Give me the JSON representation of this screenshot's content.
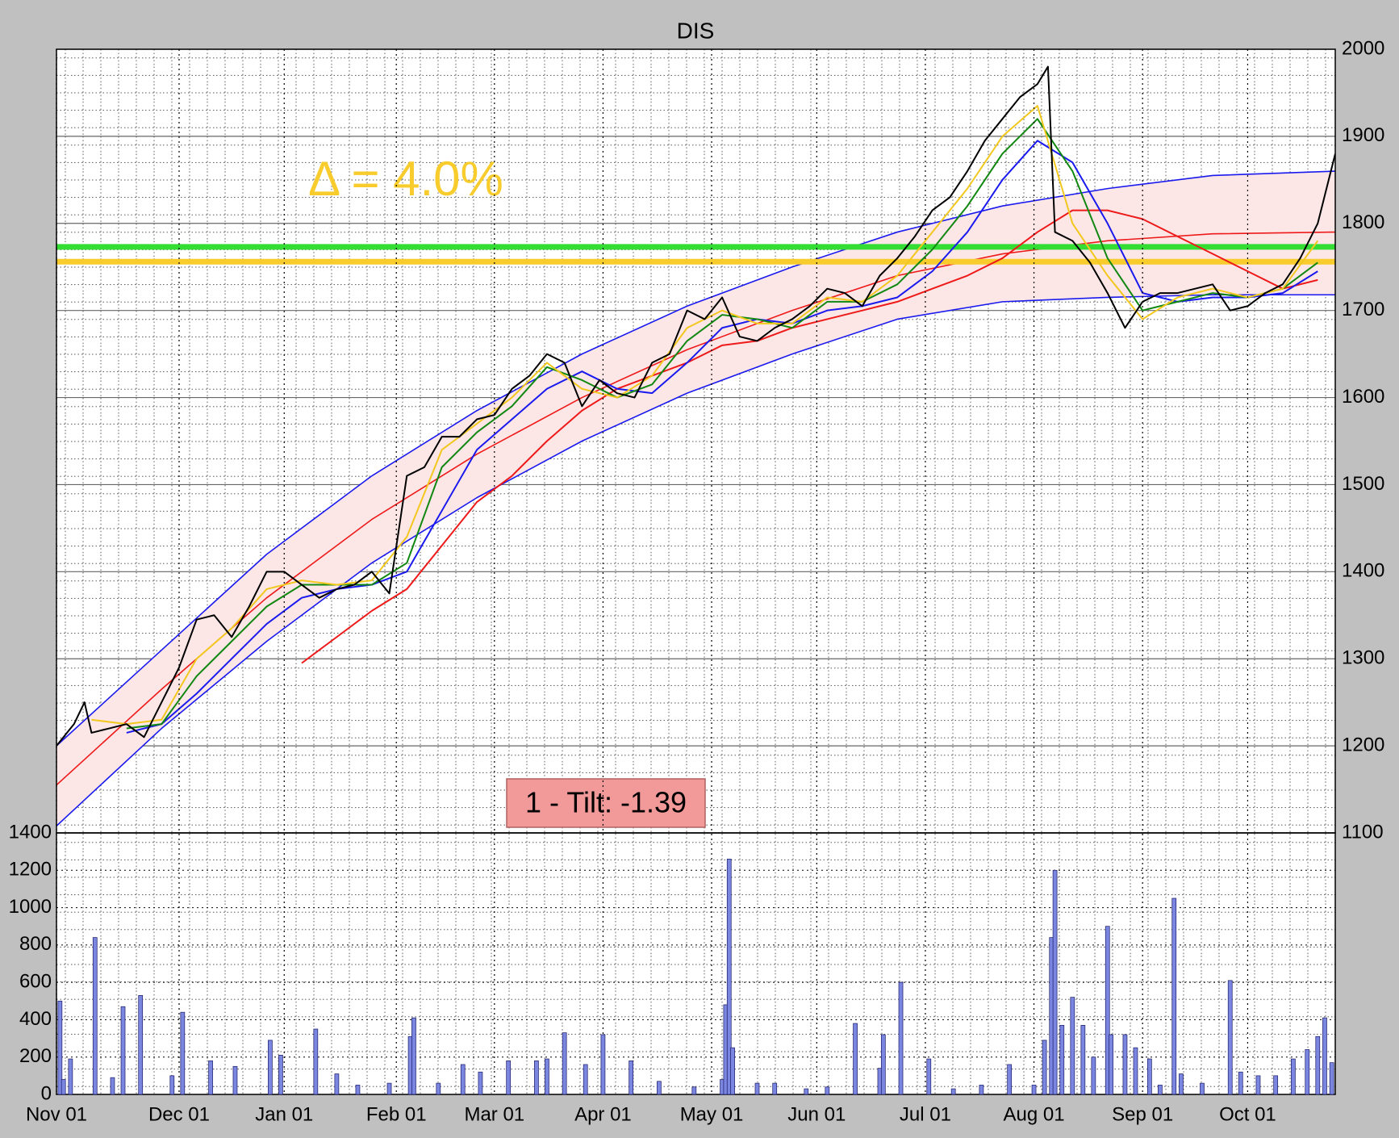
{
  "chart_data": [
    {
      "type": "line",
      "title": "DIS",
      "annotations": [
        "Δ = 4.0%",
        "1 - Tilt: -1.39"
      ],
      "xlim": [
        0,
        365
      ],
      "ylim": [
        1100,
        2000
      ],
      "yticks": [
        1100,
        1200,
        1300,
        1400,
        1500,
        1600,
        1700,
        1800,
        1900,
        2000
      ],
      "grid": true,
      "band_color": "#fde6e6",
      "hlines": [
        {
          "value": 1773,
          "color": "#33dd33"
        },
        {
          "value": 1756,
          "color": "#f8cc2c"
        }
      ],
      "series": [
        {
          "color": "#1a1aee",
          "width": 1.6,
          "x": [
            0,
            30,
            60,
            90,
            120,
            150,
            180,
            210,
            240,
            270,
            300,
            330,
            365
          ],
          "values": [
            1200,
            1310,
            1420,
            1510,
            1585,
            1650,
            1705,
            1750,
            1790,
            1820,
            1840,
            1855,
            1860
          ]
        },
        {
          "color": "#1a1aee",
          "width": 1.6,
          "x": [
            0,
            30,
            60,
            90,
            120,
            150,
            180,
            210,
            240,
            270,
            300,
            330,
            365
          ],
          "values": [
            1108,
            1220,
            1320,
            1410,
            1485,
            1550,
            1605,
            1650,
            1690,
            1710,
            1715,
            1718,
            1718
          ]
        },
        {
          "color": "#ee1a1a",
          "width": 1.6,
          "x": [
            0,
            30,
            60,
            90,
            120,
            150,
            180,
            210,
            240,
            270,
            300,
            330,
            365
          ],
          "values": [
            1155,
            1265,
            1370,
            1460,
            1535,
            1600,
            1655,
            1700,
            1740,
            1765,
            1780,
            1788,
            1790
          ]
        },
        {
          "color": "#ee1a1a",
          "width": 2,
          "x": [
            70,
            80,
            90,
            100,
            110,
            120,
            130,
            140,
            150,
            160,
            170,
            180,
            190,
            200,
            210,
            220,
            230,
            240,
            250,
            260,
            270,
            280,
            290,
            300,
            310,
            320,
            330,
            340,
            350,
            360
          ],
          "values": [
            1295,
            1325,
            1355,
            1380,
            1430,
            1480,
            1510,
            1550,
            1585,
            1610,
            1625,
            1640,
            1660,
            1665,
            1680,
            1690,
            1700,
            1710,
            1725,
            1740,
            1760,
            1790,
            1815,
            1815,
            1805,
            1785,
            1765,
            1745,
            1725,
            1735
          ]
        },
        {
          "color": "#1a1aee",
          "width": 2,
          "x": [
            20,
            30,
            40,
            50,
            60,
            70,
            80,
            90,
            100,
            110,
            120,
            130,
            140,
            150,
            160,
            170,
            180,
            190,
            200,
            210,
            220,
            230,
            240,
            250,
            260,
            270,
            280,
            290,
            300,
            310,
            320,
            330,
            340,
            350,
            360
          ],
          "values": [
            1215,
            1225,
            1260,
            1300,
            1340,
            1370,
            1380,
            1385,
            1400,
            1470,
            1540,
            1575,
            1610,
            1630,
            1610,
            1605,
            1640,
            1680,
            1690,
            1685,
            1700,
            1705,
            1715,
            1745,
            1790,
            1850,
            1895,
            1870,
            1800,
            1720,
            1710,
            1715,
            1715,
            1720,
            1745
          ]
        },
        {
          "color": "#118811",
          "width": 2,
          "x": [
            20,
            30,
            40,
            50,
            60,
            70,
            80,
            90,
            100,
            110,
            120,
            130,
            140,
            150,
            160,
            170,
            180,
            190,
            200,
            210,
            220,
            230,
            240,
            250,
            260,
            270,
            280,
            290,
            300,
            310,
            320,
            330,
            340,
            350,
            360
          ],
          "values": [
            1220,
            1225,
            1280,
            1320,
            1360,
            1385,
            1385,
            1385,
            1410,
            1520,
            1560,
            1590,
            1635,
            1620,
            1600,
            1615,
            1665,
            1695,
            1690,
            1680,
            1710,
            1710,
            1730,
            1770,
            1820,
            1880,
            1920,
            1860,
            1760,
            1700,
            1710,
            1720,
            1715,
            1725,
            1755
          ]
        },
        {
          "color": "#f2c81e",
          "width": 2,
          "x": [
            10,
            20,
            30,
            40,
            50,
            60,
            70,
            80,
            90,
            100,
            110,
            120,
            130,
            140,
            150,
            160,
            170,
            180,
            190,
            200,
            210,
            220,
            230,
            240,
            250,
            260,
            270,
            280,
            290,
            300,
            310,
            320,
            330,
            340,
            350,
            360
          ],
          "values": [
            1230,
            1225,
            1230,
            1300,
            1335,
            1380,
            1390,
            1385,
            1390,
            1440,
            1540,
            1570,
            1600,
            1640,
            1610,
            1600,
            1625,
            1680,
            1700,
            1685,
            1685,
            1715,
            1710,
            1740,
            1790,
            1840,
            1900,
            1935,
            1800,
            1740,
            1690,
            1715,
            1725,
            1715,
            1725,
            1780
          ]
        },
        {
          "color": "#000000",
          "width": 2,
          "x": [
            0,
            5,
            8,
            10,
            15,
            20,
            25,
            30,
            35,
            40,
            45,
            50,
            55,
            60,
            65,
            70,
            75,
            80,
            85,
            90,
            95,
            100,
            105,
            110,
            115,
            120,
            125,
            130,
            135,
            140,
            145,
            150,
            155,
            160,
            165,
            170,
            175,
            180,
            185,
            190,
            195,
            200,
            205,
            210,
            215,
            220,
            225,
            230,
            235,
            240,
            245,
            250,
            255,
            260,
            265,
            270,
            275,
            280,
            283,
            285,
            290,
            295,
            300,
            305,
            310,
            315,
            320,
            325,
            330,
            335,
            340,
            345,
            350,
            355,
            360,
            365
          ],
          "values": [
            1200,
            1225,
            1250,
            1215,
            1220,
            1225,
            1210,
            1250,
            1290,
            1345,
            1350,
            1325,
            1360,
            1400,
            1400,
            1385,
            1370,
            1380,
            1385,
            1400,
            1375,
            1510,
            1520,
            1555,
            1555,
            1575,
            1580,
            1610,
            1625,
            1650,
            1640,
            1590,
            1620,
            1605,
            1600,
            1640,
            1650,
            1700,
            1690,
            1715,
            1670,
            1665,
            1680,
            1690,
            1705,
            1725,
            1720,
            1705,
            1740,
            1760,
            1785,
            1815,
            1830,
            1860,
            1895,
            1920,
            1945,
            1960,
            1980,
            1790,
            1780,
            1755,
            1720,
            1680,
            1710,
            1720,
            1720,
            1725,
            1730,
            1700,
            1705,
            1720,
            1730,
            1760,
            1800,
            1880
          ]
        }
      ]
    },
    {
      "type": "bar",
      "color": "#7b86e0",
      "xlim": [
        0,
        365
      ],
      "ylim": [
        0,
        1400
      ],
      "yticks": [
        0,
        200,
        400,
        600,
        800,
        1000,
        1200,
        1400
      ],
      "xticks": [
        {
          "value": 0,
          "label": "Nov 01"
        },
        {
          "value": 35,
          "label": "Dec 01"
        },
        {
          "value": 65,
          "label": "Jan 01"
        },
        {
          "value": 97,
          "label": "Feb 01"
        },
        {
          "value": 125,
          "label": "Mar 01"
        },
        {
          "value": 156,
          "label": "Apr 01"
        },
        {
          "value": 187,
          "label": "May 01"
        },
        {
          "value": 217,
          "label": "Jun 01"
        },
        {
          "value": 248,
          "label": "Jul 01"
        },
        {
          "value": 279,
          "label": "Aug 01"
        },
        {
          "value": 310,
          "label": "Sep 01"
        },
        {
          "value": 340,
          "label": "Oct 01"
        }
      ],
      "x": [
        1,
        2,
        4,
        11,
        16,
        19,
        24,
        33,
        36,
        44,
        51,
        61,
        64,
        74,
        80,
        86,
        95,
        101,
        102,
        109,
        116,
        121,
        129,
        137,
        140,
        145,
        151,
        156,
        164,
        172,
        182,
        190,
        191,
        192,
        193,
        200,
        205,
        214,
        220,
        228,
        235,
        236,
        241,
        249,
        256,
        264,
        272,
        279,
        282,
        284,
        285,
        287,
        290,
        293,
        296,
        300,
        301,
        305,
        308,
        312,
        315,
        319,
        321,
        327,
        335,
        338,
        343,
        348,
        353,
        357,
        360,
        362,
        364
      ],
      "values": [
        500,
        80,
        190,
        840,
        90,
        470,
        530,
        100,
        440,
        180,
        150,
        290,
        210,
        350,
        110,
        50,
        60,
        310,
        410,
        60,
        160,
        120,
        180,
        180,
        190,
        330,
        160,
        320,
        180,
        70,
        40,
        80,
        480,
        1260,
        250,
        60,
        60,
        30,
        40,
        380,
        140,
        320,
        600,
        190,
        30,
        50,
        160,
        50,
        290,
        840,
        1200,
        370,
        520,
        370,
        200,
        900,
        320,
        320,
        250,
        190,
        50,
        1050,
        110,
        60,
        610,
        120,
        100,
        100,
        190,
        240,
        310,
        410,
        170
      ]
    }
  ]
}
